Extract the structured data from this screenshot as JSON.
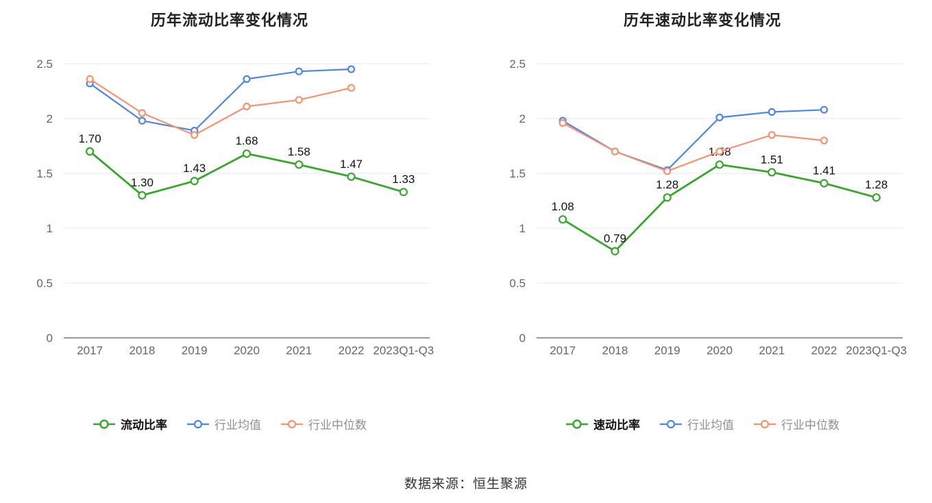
{
  "page": {
    "background": "#ffffff",
    "source_note": "数据来源：恒生聚源"
  },
  "chart_data": [
    {
      "type": "line",
      "title": "历年流动比率变化情况",
      "categories": [
        "2017",
        "2018",
        "2019",
        "2020",
        "2021",
        "2022",
        "2023Q1-Q3"
      ],
      "ylim": [
        0,
        2.5
      ],
      "yticks": [
        0,
        0.5,
        1,
        1.5,
        2,
        2.5
      ],
      "grid": "horizontal",
      "legend_position": "bottom",
      "series": [
        {
          "name": "流动比率",
          "color": "#35a829",
          "show_labels": true,
          "line_width": 2.8,
          "marker_radius": 5,
          "values": [
            1.7,
            1.3,
            1.43,
            1.68,
            1.58,
            1.47,
            1.33
          ]
        },
        {
          "name": "行业均值",
          "color": "#4a86e8",
          "show_labels": false,
          "line_width": 2.2,
          "marker_radius": 4.5,
          "values": [
            2.32,
            1.98,
            1.89,
            2.36,
            2.43,
            2.45,
            null
          ]
        },
        {
          "name": "行业中位数",
          "color": "#f9916f",
          "show_labels": false,
          "line_width": 2.2,
          "marker_radius": 4.5,
          "values": [
            2.36,
            2.05,
            1.85,
            2.11,
            2.17,
            2.28,
            null
          ]
        }
      ]
    },
    {
      "type": "line",
      "title": "历年速动比率变化情况",
      "categories": [
        "2017",
        "2018",
        "2019",
        "2020",
        "2021",
        "2022",
        "2023Q1-Q3"
      ],
      "ylim": [
        0,
        2.5
      ],
      "yticks": [
        0,
        0.5,
        1,
        1.5,
        2,
        2.5
      ],
      "grid": "horizontal",
      "legend_position": "bottom",
      "series": [
        {
          "name": "速动比率",
          "color": "#35a829",
          "show_labels": true,
          "line_width": 2.8,
          "marker_radius": 5,
          "values": [
            1.08,
            0.79,
            1.28,
            1.58,
            1.51,
            1.41,
            1.28
          ]
        },
        {
          "name": "行业均值",
          "color": "#4a86e8",
          "show_labels": false,
          "line_width": 2.2,
          "marker_radius": 4.5,
          "values": [
            1.98,
            1.7,
            1.53,
            2.01,
            2.06,
            2.08,
            null
          ]
        },
        {
          "name": "行业中位数",
          "color": "#f9916f",
          "show_labels": false,
          "line_width": 2.2,
          "marker_radius": 4.5,
          "values": [
            1.96,
            1.7,
            1.52,
            1.7,
            1.85,
            1.8,
            null
          ]
        }
      ]
    }
  ]
}
